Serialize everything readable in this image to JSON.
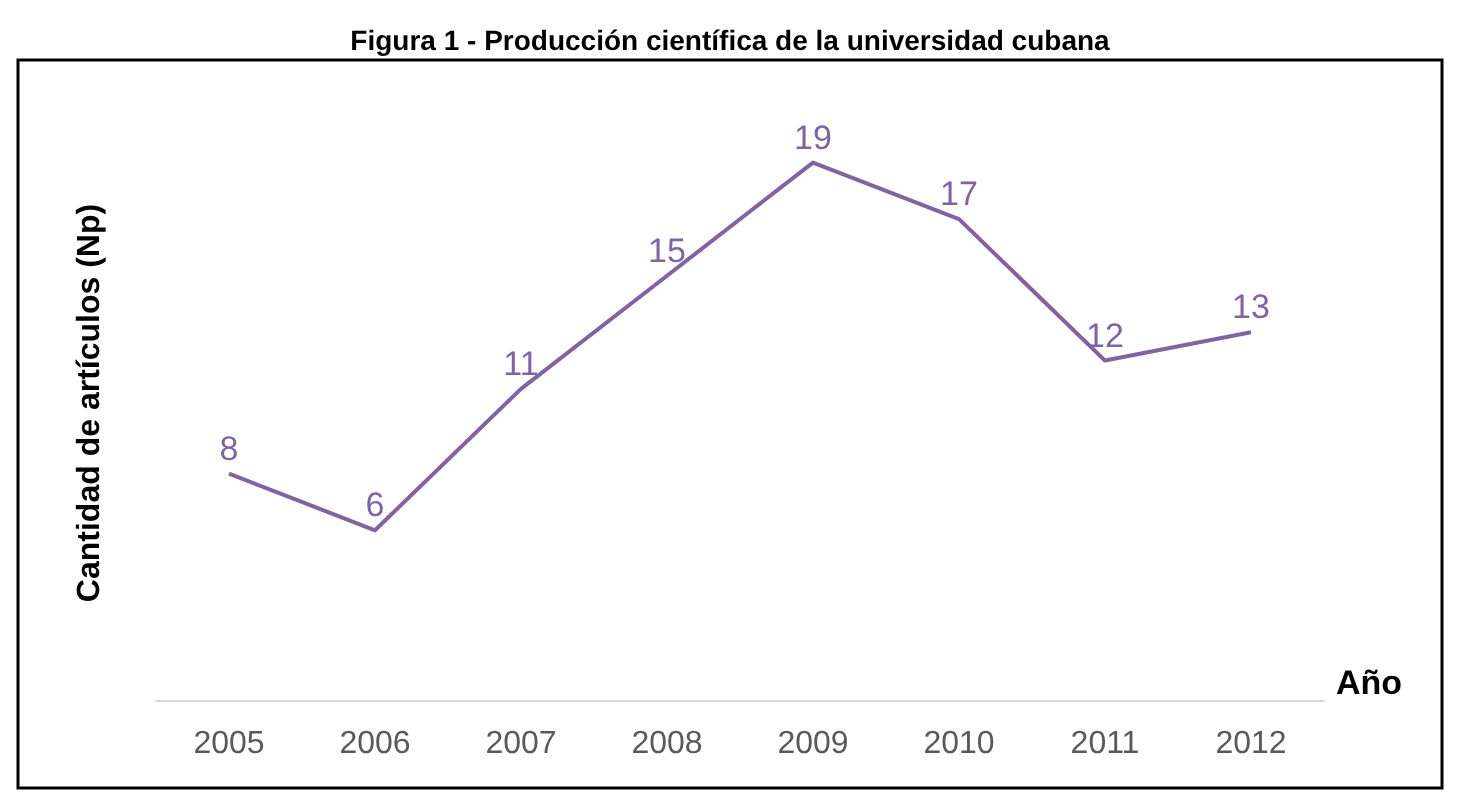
{
  "chart_data": {
    "type": "line",
    "title": "Figura 1 - Producción científica de la universidad cubana",
    "xlabel": "Año",
    "ylabel": "Cantidad de artículos (Np)",
    "categories": [
      "2005",
      "2006",
      "2007",
      "2008",
      "2009",
      "2010",
      "2011",
      "2012"
    ],
    "series": [
      {
        "color": "#8064a2",
        "values": [
          8,
          6,
          11,
          15,
          19,
          17,
          12,
          13
        ]
      }
    ],
    "data_labels": true,
    "marker": "none",
    "grid": false,
    "tick_labels": "x"
  }
}
